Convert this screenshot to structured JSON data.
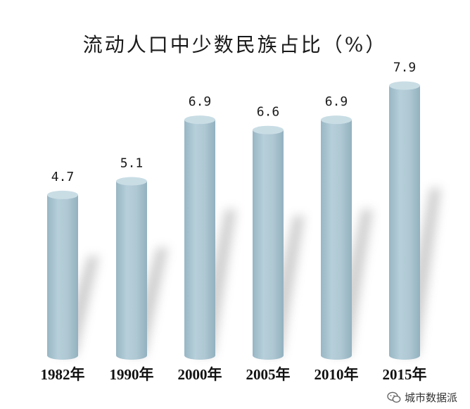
{
  "chart_data": {
    "type": "bar",
    "title": "流动人口中少数民族占比（%）",
    "categories": [
      "1982年",
      "1990年",
      "2000年",
      "2005年",
      "2010年",
      "2015年"
    ],
    "values": [
      4.7,
      5.1,
      6.9,
      6.6,
      6.9,
      7.9
    ],
    "value_labels": [
      "4.7",
      "5.1",
      "6.9",
      "6.6",
      "6.9",
      "7.9"
    ],
    "xlabel": "",
    "ylabel": "",
    "ylim": [
      0,
      10.2
    ],
    "grid": false,
    "legend": "none",
    "bar_style": "cylinder",
    "colors": {
      "bar": "#a9c4d0",
      "bar_top": "#c9dde5",
      "shadow": "#9a9a9a"
    }
  },
  "watermark": {
    "icon": "wechat-icon",
    "text": "城市数据派"
  }
}
